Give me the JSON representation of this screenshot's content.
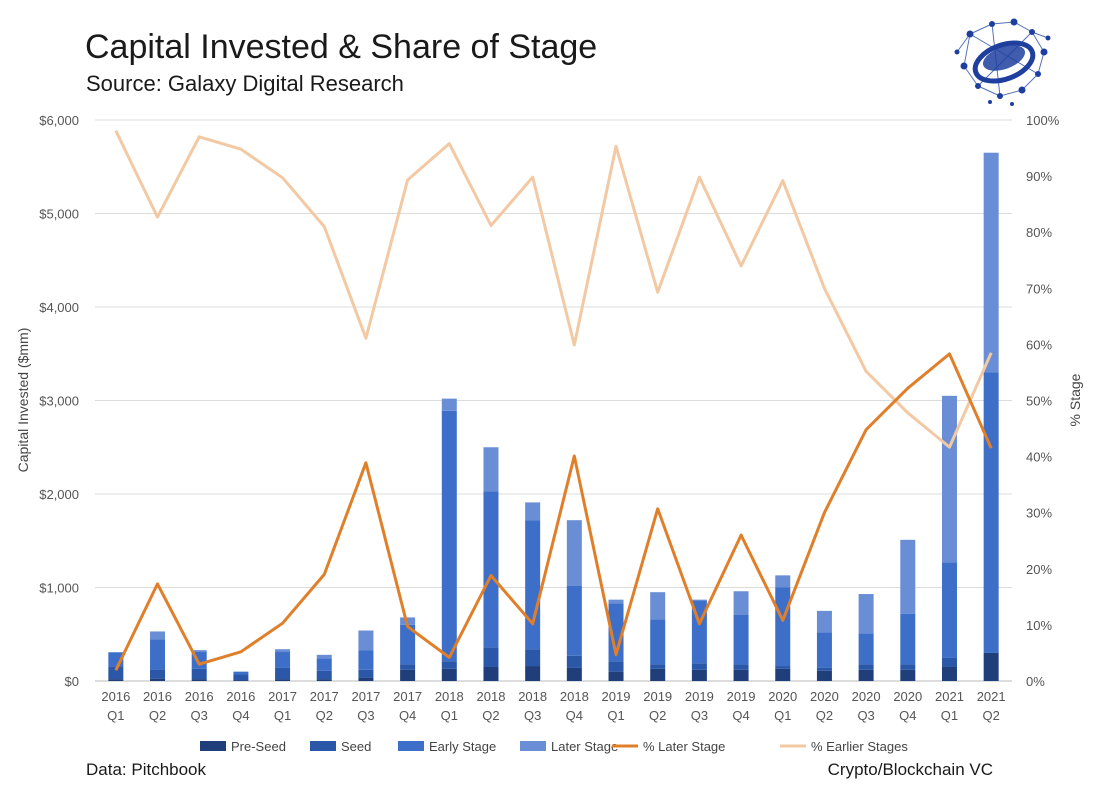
{
  "title": "Capital Invested & Share of Stage",
  "subtitle": "Source: Galaxy Digital Research",
  "footer": {
    "left": "Data: Pitchbook",
    "right": "Crypto/Blockchain VC"
  },
  "logo": {
    "icon": "network-globe-logo",
    "color": "#1f3f9f"
  },
  "chart_data": {
    "type": "bar",
    "stacked": true,
    "ylabel": "Capital Invested ($mm)",
    "y2label": "%  Stage",
    "ylim": [
      0,
      6000
    ],
    "y2lim": [
      0,
      100
    ],
    "yticks": [
      "$0",
      "$1,000",
      "$2,000",
      "$3,000",
      "$4,000",
      "$5,000",
      "$6,000"
    ],
    "y2ticks": [
      "0%",
      "10%",
      "20%",
      "30%",
      "40%",
      "50%",
      "60%",
      "70%",
      "80%",
      "90%",
      "100%"
    ],
    "grid": true,
    "legend_position": "bottom",
    "categories": [
      {
        "year": "2016",
        "q": "Q1"
      },
      {
        "year": "2016",
        "q": "Q2"
      },
      {
        "year": "2016",
        "q": "Q3"
      },
      {
        "year": "2016",
        "q": "Q4"
      },
      {
        "year": "2017",
        "q": "Q1"
      },
      {
        "year": "2017",
        "q": "Q2"
      },
      {
        "year": "2017",
        "q": "Q3"
      },
      {
        "year": "2017",
        "q": "Q4"
      },
      {
        "year": "2018",
        "q": "Q1"
      },
      {
        "year": "2018",
        "q": "Q2"
      },
      {
        "year": "2018",
        "q": "Q3"
      },
      {
        "year": "2018",
        "q": "Q4"
      },
      {
        "year": "2019",
        "q": "Q1"
      },
      {
        "year": "2019",
        "q": "Q2"
      },
      {
        "year": "2019",
        "q": "Q3"
      },
      {
        "year": "2019",
        "q": "Q4"
      },
      {
        "year": "2020",
        "q": "Q1"
      },
      {
        "year": "2020",
        "q": "Q2"
      },
      {
        "year": "2020",
        "q": "Q3"
      },
      {
        "year": "2020",
        "q": "Q4"
      },
      {
        "year": "2021",
        "q": "Q1"
      },
      {
        "year": "2021",
        "q": "Q2"
      }
    ],
    "series": [
      {
        "name": "Pre-Seed",
        "kind": "bar",
        "color": "#203f7a",
        "values": [
          20,
          25,
          20,
          10,
          20,
          20,
          40,
          120,
          130,
          150,
          160,
          140,
          100,
          130,
          120,
          120,
          130,
          110,
          120,
          120,
          150,
          300
        ]
      },
      {
        "name": "Seed",
        "kind": "bar",
        "color": "#2a57a8",
        "values": [
          130,
          100,
          110,
          60,
          120,
          90,
          80,
          60,
          80,
          210,
          180,
          130,
          110,
          50,
          70,
          60,
          30,
          30,
          60,
          60,
          100,
          0
        ]
      },
      {
        "name": "Early Stage",
        "kind": "bar",
        "color": "#3d6fc8",
        "values": [
          150,
          320,
          180,
          30,
          170,
          130,
          210,
          420,
          2680,
          1670,
          1380,
          750,
          620,
          480,
          670,
          530,
          840,
          380,
          330,
          540,
          1020,
          3000
        ]
      },
      {
        "name": "Later Stage",
        "kind": "bar",
        "color": "#6a8ed6",
        "values": [
          10,
          85,
          20,
          0,
          30,
          40,
          210,
          80,
          130,
          470,
          190,
          700,
          40,
          290,
          10,
          250,
          130,
          230,
          420,
          790,
          1780,
          2350
        ]
      },
      {
        "name": "% Later Stage",
        "kind": "line",
        "axis": "y2",
        "color": "#e07f2a",
        "values": [
          1.9,
          17.3,
          3.0,
          5.2,
          10.3,
          19.0,
          38.9,
          9.7,
          4.2,
          18.8,
          10.2,
          40.1,
          4.7,
          30.7,
          10.2,
          26.0,
          10.8,
          30.0,
          44.8,
          52.2,
          58.3,
          41.5
        ]
      },
      {
        "name": "% Earlier Stages",
        "kind": "line",
        "axis": "y2",
        "color": "#f3c9a3",
        "values": [
          98.1,
          82.7,
          97.0,
          94.8,
          89.7,
          81.0,
          61.1,
          89.3,
          95.8,
          81.2,
          89.8,
          59.9,
          95.3,
          69.3,
          89.8,
          74.0,
          89.2,
          70.0,
          55.2,
          47.8,
          41.7,
          58.5
        ]
      }
    ]
  }
}
